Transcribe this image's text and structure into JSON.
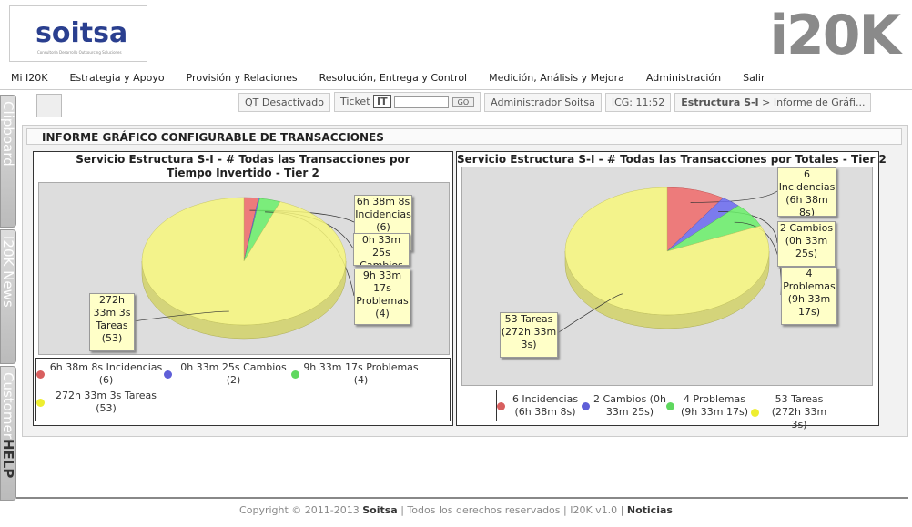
{
  "header": {
    "logo": "soitsa",
    "logo_tagline": "Consultoría Desarrollo Outsourcing Soluciones",
    "brand": "i20K"
  },
  "menu": [
    "Mi I20K",
    "Estrategia y Apoyo",
    "Provisión y Relaciones",
    "Resolución, Entrega y Control",
    "Medición, Análisis y Mejora",
    "Administración",
    "Salir"
  ],
  "toolbar": {
    "qt": "QT Desactivado",
    "ticket": "Ticket",
    "ticket_button": "IT",
    "go": "GO",
    "user": "Administrador Soitsa",
    "icg": "ICG: 11:52",
    "breadcrumb_bold": "Estructura S-I",
    "breadcrumb": "> Informe de Gráfi..."
  },
  "side_tabs": [
    "Clipboard",
    "I20K News",
    "Customer",
    "HELP"
  ],
  "panel": {
    "title": "INFORME GRÁFICO CONFIGURABLE DE TRANSACCIONES"
  },
  "charts": [
    {
      "type": "pie",
      "title": "Servicio Estructura S-I - # Todas las Transacciones por Tiempo Invertido - Tier 2",
      "slices": [
        {
          "value": 23888,
          "label": "6h 38m 8s Incidencias (6)",
          "color": "#f06a6a"
        },
        {
          "value": 2005,
          "label": "0h 33m 25s Cambios (2)",
          "color": "#6a6af0"
        },
        {
          "value": 34397,
          "label": "9h 33m 17s Problemas (4)",
          "color": "#6af06a"
        },
        {
          "value": 981183,
          "label": "272h 33m 3s Tareas (53)",
          "color": "#f7f77c"
        }
      ]
    },
    {
      "type": "pie",
      "title": "Servicio Estructura S-I - # Todas las Transacciones por Totales - Tier 2",
      "slices": [
        {
          "value": 6,
          "label": "6 Incidencias (6h 38m 8s)",
          "color": "#f06a6a"
        },
        {
          "value": 2,
          "label": "2 Cambios (0h 33m 25s)",
          "color": "#6a6af0"
        },
        {
          "value": 4,
          "label": "4 Problemas (9h 33m 17s)",
          "color": "#6af06a"
        },
        {
          "value": 53,
          "label": "53 Tareas (272h 33m 3s)",
          "color": "#f7f77c"
        }
      ]
    }
  ],
  "footer": {
    "copyright": "Copyright © 2011-2013",
    "company": "Soitsa",
    "rights": "| Todos los derechos reservados | I20K v1.0 |",
    "news": "Noticias"
  }
}
